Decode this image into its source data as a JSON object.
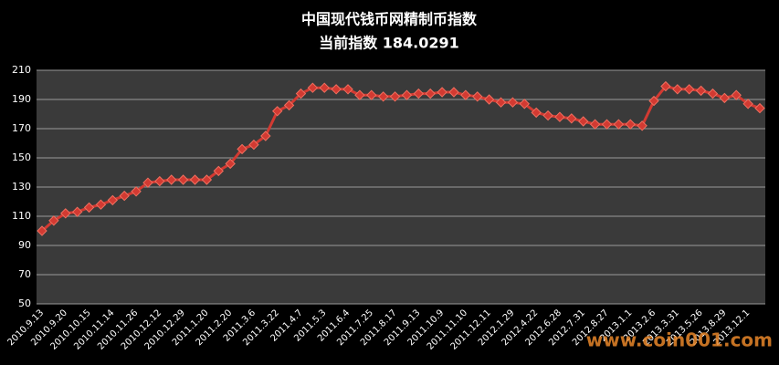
{
  "chart_data": {
    "type": "line",
    "title": "中国现代钱币网精制币指数",
    "subtitle": "当前指数 184.0291",
    "watermark": "www.coin001.com",
    "categories": [
      "2010.9.13",
      null,
      "2010.9.20",
      null,
      "2010.10.15",
      null,
      "2010.11.14",
      null,
      "2010.11.26",
      null,
      "2010.12.12",
      null,
      "2010.12.29",
      null,
      "2011.1.20",
      null,
      "2011.2.20",
      null,
      "2011.3.6",
      null,
      "2011.3.22",
      null,
      "2011.4.7",
      null,
      "2011.5.3",
      null,
      "2011.6.4",
      null,
      "2011.7.25",
      null,
      "2011.8.17",
      null,
      "2011.9.13",
      null,
      "2011.10.9",
      null,
      "2011.11.10",
      null,
      "2011.12.11",
      null,
      "2012.1.29",
      null,
      "2012.4.22",
      null,
      "2012.6.28",
      null,
      "2012.7.31",
      null,
      "2012.8.27",
      null,
      "2013.1.1",
      null,
      "2013.2.6",
      null,
      "2013.3.31",
      null,
      "2013.5.26",
      null,
      "2013.8.29",
      null,
      "2013.12.1",
      null
    ],
    "values": [
      100,
      107,
      112,
      113,
      116,
      118,
      121,
      124,
      127,
      133,
      134,
      135,
      135,
      135,
      135,
      141,
      146,
      156,
      159,
      165,
      182,
      186,
      194,
      198,
      198,
      197,
      197,
      193,
      193,
      192,
      192,
      193,
      194,
      194,
      195,
      195,
      193,
      192,
      190,
      188,
      188,
      187,
      181,
      179,
      178,
      177,
      175,
      173,
      173,
      173,
      173,
      172,
      189,
      199,
      197,
      197,
      196,
      194,
      191,
      193,
      187,
      184
    ],
    "color": "#d23a32",
    "ylim": [
      50,
      210
    ],
    "yticks": [
      50,
      70,
      90,
      110,
      130,
      150,
      170,
      190,
      210
    ],
    "grid": true
  }
}
